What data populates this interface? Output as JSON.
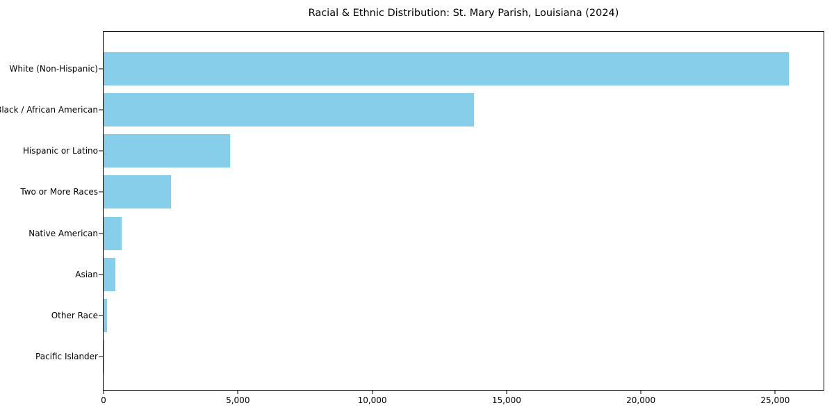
{
  "chart_data": {
    "type": "bar",
    "orientation": "horizontal",
    "title": "Racial & Ethnic Distribution: St. Mary Parish, Louisiana (2024)",
    "categories": [
      "White (Non-Hispanic)",
      "Black / African American",
      "Hispanic or Latino",
      "Two or More Races",
      "Native American",
      "Asian",
      "Other Race",
      "Pacific Islander"
    ],
    "values": [
      25500,
      13800,
      4700,
      2500,
      680,
      450,
      120,
      15
    ],
    "xlabel": "",
    "ylabel": "",
    "xlim": [
      0,
      26800
    ],
    "x_ticks": [
      0,
      5000,
      10000,
      15000,
      20000,
      25000
    ],
    "x_tick_labels": [
      "0",
      "5,000",
      "10,000",
      "15,000",
      "20,000",
      "25,000"
    ],
    "grid": false,
    "legend": null,
    "bar_color": "#87CEEB",
    "axis_color": "#000000",
    "text_color": "#000000",
    "background_color": "#ffffff"
  }
}
